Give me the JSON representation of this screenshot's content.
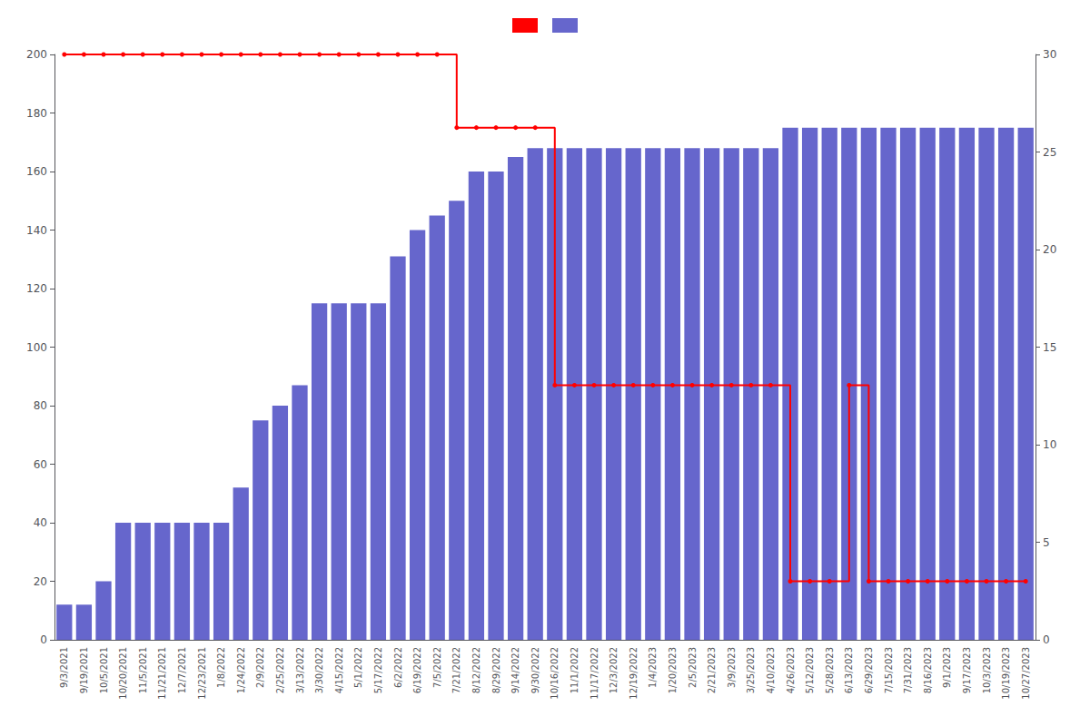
{
  "chart_data": {
    "type": "bar",
    "categories": [
      "9/3/2021",
      "9/19/2021",
      "10/5/2021",
      "10/20/2021",
      "11/5/2021",
      "11/21/2021",
      "12/7/2021",
      "12/23/2021",
      "1/8/2022",
      "1/24/2022",
      "2/9/2022",
      "2/25/2022",
      "3/13/2022",
      "3/30/2022",
      "4/15/2022",
      "5/1/2022",
      "5/17/2022",
      "6/2/2022",
      "6/19/2022",
      "7/5/2022",
      "7/21/2022",
      "8/12/2022",
      "8/29/2022",
      "9/14/2022",
      "9/30/2022",
      "10/16/2022",
      "11/1/2022",
      "11/17/2022",
      "12/3/2022",
      "12/19/2022",
      "1/4/2023",
      "1/20/2023",
      "2/5/2023",
      "2/21/2023",
      "3/9/2023",
      "3/25/2023",
      "4/10/2023",
      "4/26/2023",
      "5/12/2023",
      "5/28/2023",
      "6/13/2023",
      "6/29/2023",
      "7/15/2023",
      "7/31/2023",
      "8/16/2023",
      "9/1/2023",
      "9/17/2023",
      "10/3/2023",
      "10/19/2023",
      "10/27/2023"
    ],
    "series": [
      {
        "type": "bar",
        "color": "#6666cc",
        "values": [
          12,
          12,
          20,
          40,
          40,
          40,
          40,
          40,
          40,
          52,
          75,
          80,
          87,
          115,
          115,
          115,
          115,
          131,
          140,
          145,
          150,
          160,
          160,
          165,
          168,
          168,
          168,
          168,
          168,
          168,
          168,
          168,
          168,
          168,
          168,
          168,
          168,
          175,
          175,
          175,
          175,
          175,
          175,
          175,
          175,
          175,
          175,
          175,
          175,
          175
        ]
      },
      {
        "type": "line",
        "color": "#ff0000",
        "line_style": "step",
        "marker": "circle",
        "values": [
          200,
          200,
          200,
          200,
          200,
          200,
          200,
          200,
          200,
          200,
          200,
          200,
          200,
          200,
          200,
          200,
          200,
          200,
          200,
          200,
          175,
          175,
          175,
          175,
          175,
          87,
          87,
          87,
          87,
          87,
          87,
          87,
          87,
          87,
          87,
          87,
          87,
          20,
          20,
          20,
          87,
          20,
          20,
          20,
          20,
          20,
          20,
          20,
          20,
          20
        ]
      }
    ],
    "ylim": [
      0,
      200
    ],
    "yticks": [
      0,
      20,
      40,
      60,
      80,
      100,
      120,
      140,
      160,
      180,
      200
    ],
    "y2lim": [
      0,
      30
    ],
    "y2ticks": [
      0,
      5,
      10,
      15,
      20,
      25,
      30
    ],
    "grid": false,
    "legend": "top",
    "tick_labels": true
  }
}
